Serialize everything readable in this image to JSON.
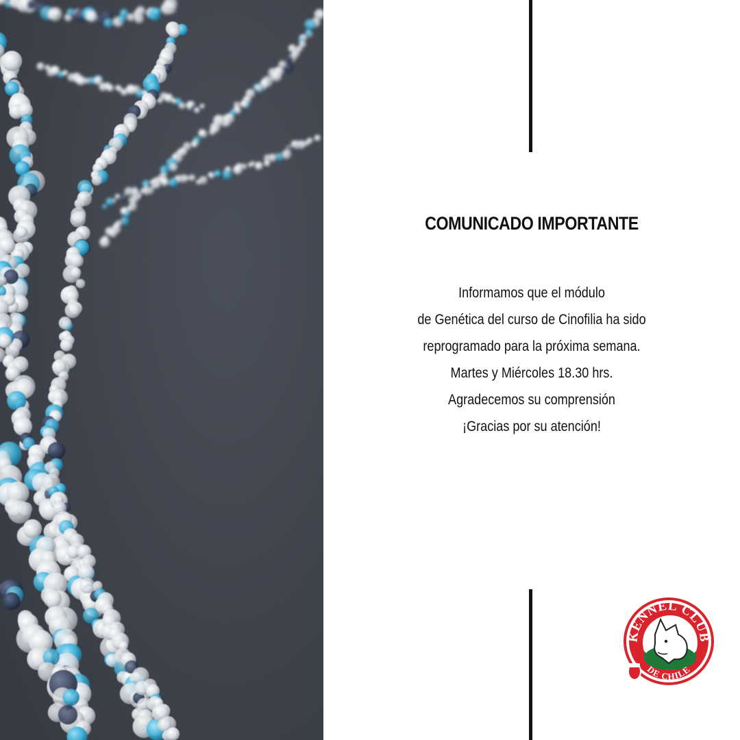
{
  "photo": {
    "subject": "dna-double-helix",
    "background_color": "#3f434d",
    "accent_color": "#3aaed8"
  },
  "notice": {
    "title": "COMUNICADO IMPORTANTE",
    "lines": [
      "Informamos que el módulo",
      "de Genética del curso de Cinofilia ha sido",
      "reprogramado para la próxima semana.",
      "Martes y Miércoles 18.30 hrs.",
      "Agradecemos su comprensión",
      "¡Gracias por su atención!"
    ]
  },
  "logo": {
    "top_text": "KENNEL CLUB",
    "bottom_text": "DE CHILE",
    "colors": {
      "red": "#d9232d",
      "green": "#1f7a3a",
      "white": "#ffffff"
    }
  }
}
